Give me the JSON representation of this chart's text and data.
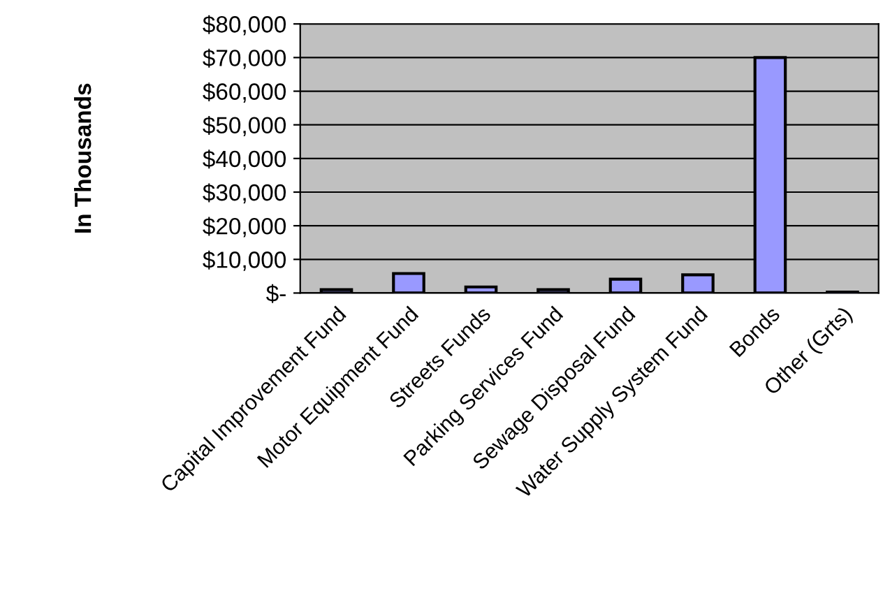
{
  "chart_data": {
    "type": "bar",
    "ylabel": "In Thousands",
    "categories": [
      "Capital Improvement Fund",
      "Motor Equipment Fund",
      "Streets Funds",
      "Parking Services Fund",
      "Sewage Disposal Fund",
      "Water Supply System Fund",
      "Bonds",
      "Other (Grts)"
    ],
    "values": [
      1000,
      5800,
      1800,
      1000,
      4100,
      5400,
      70000,
      300
    ],
    "color": "#9999ff",
    "ylim": [
      0,
      80000
    ],
    "yticks": [
      {
        "value": 0,
        "label": "$-"
      },
      {
        "value": 10000,
        "label": "$10,000"
      },
      {
        "value": 20000,
        "label": "$20,000"
      },
      {
        "value": 30000,
        "label": "$30,000"
      },
      {
        "value": 40000,
        "label": "$40,000"
      },
      {
        "value": 50000,
        "label": "$50,000"
      },
      {
        "value": 60000,
        "label": "$60,000"
      },
      {
        "value": 70000,
        "label": "$70,000"
      },
      {
        "value": 80000,
        "label": "$80,000"
      }
    ],
    "grid": "y"
  }
}
